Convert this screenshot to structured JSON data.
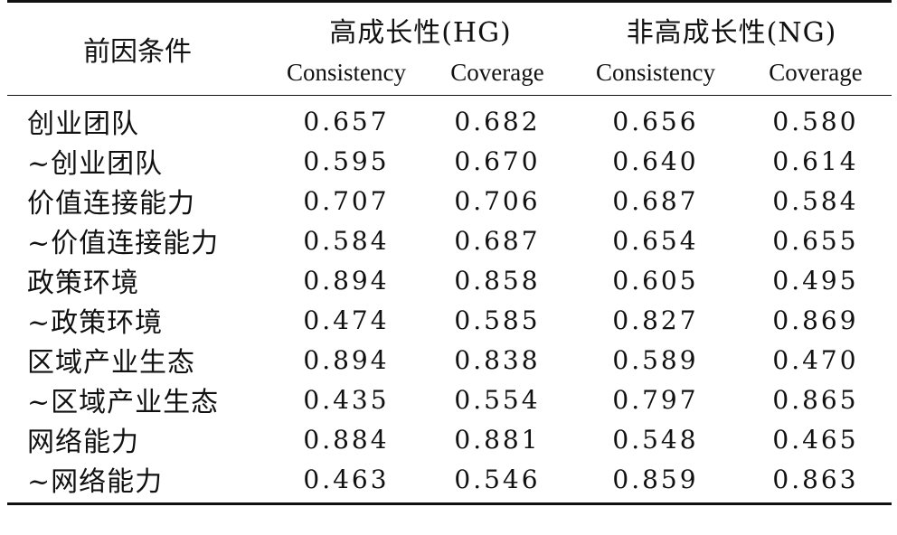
{
  "table": {
    "header": {
      "row_label": "前因条件",
      "groups": [
        "高成长性(HG)",
        "非高成长性(NG)"
      ],
      "subcolumns": [
        "Consistency",
        "Coverage",
        "Consistency",
        "Coverage"
      ]
    },
    "rows": [
      {
        "name": "创业团队",
        "values": [
          "0.657",
          "0.682",
          "0.656",
          "0.580"
        ]
      },
      {
        "name": "~创业团队",
        "values": [
          "0.595",
          "0.670",
          "0.640",
          "0.614"
        ]
      },
      {
        "name": "价值连接能力",
        "values": [
          "0.707",
          "0.706",
          "0.687",
          "0.584"
        ]
      },
      {
        "name": "~价值连接能力",
        "values": [
          "0.584",
          "0.687",
          "0.654",
          "0.655"
        ]
      },
      {
        "name": "政策环境",
        "values": [
          "0.894",
          "0.858",
          "0.605",
          "0.495"
        ]
      },
      {
        "name": "~政策环境",
        "values": [
          "0.474",
          "0.585",
          "0.827",
          "0.869"
        ]
      },
      {
        "name": "区域产业生态",
        "values": [
          "0.894",
          "0.838",
          "0.589",
          "0.470"
        ]
      },
      {
        "name": "~区域产业生态",
        "values": [
          "0.435",
          "0.554",
          "0.797",
          "0.865"
        ]
      },
      {
        "name": "网络能力",
        "values": [
          "0.884",
          "0.881",
          "0.548",
          "0.465"
        ]
      },
      {
        "name": "~网络能力",
        "values": [
          "0.463",
          "0.546",
          "0.859",
          "0.863"
        ]
      }
    ]
  }
}
